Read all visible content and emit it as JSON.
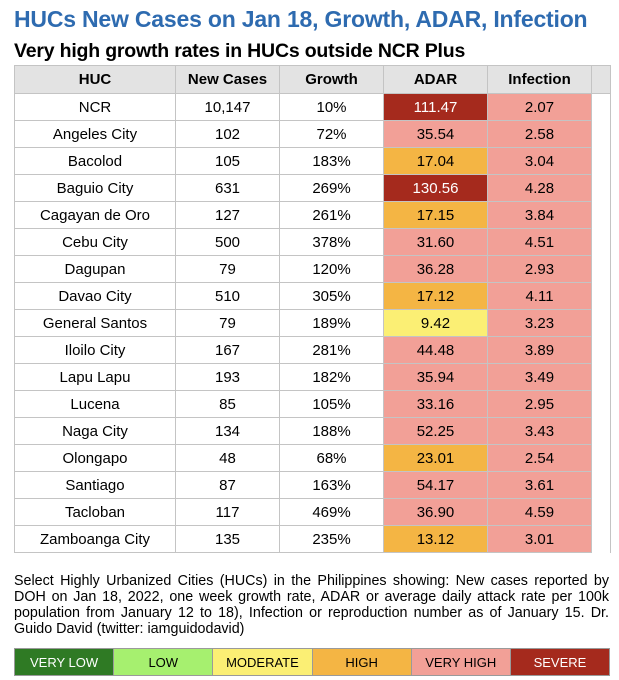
{
  "title": "HUCs New Cases on Jan 18, Growth, ADAR, Infection",
  "subtitle": "Very high growth rates in HUCs outside NCR Plus",
  "headers": {
    "huc": "HUC",
    "new_cases": "New Cases",
    "growth": "Growth",
    "adar": "ADAR",
    "infection": "Infection"
  },
  "rows": [
    {
      "huc": "NCR",
      "new_cases": "10,147",
      "growth": "10%",
      "adar": "111.47",
      "infection": "2.07"
    },
    {
      "huc": "Angeles City",
      "new_cases": "102",
      "growth": "72%",
      "adar": "35.54",
      "infection": "2.58"
    },
    {
      "huc": "Bacolod",
      "new_cases": "105",
      "growth": "183%",
      "adar": "17.04",
      "infection": "3.04"
    },
    {
      "huc": "Baguio City",
      "new_cases": "631",
      "growth": "269%",
      "adar": "130.56",
      "infection": "4.28"
    },
    {
      "huc": "Cagayan de Oro",
      "new_cases": "127",
      "growth": "261%",
      "adar": "17.15",
      "infection": "3.84"
    },
    {
      "huc": "Cebu City",
      "new_cases": "500",
      "growth": "378%",
      "adar": "31.60",
      "infection": "4.51"
    },
    {
      "huc": "Dagupan",
      "new_cases": "79",
      "growth": "120%",
      "adar": "36.28",
      "infection": "2.93"
    },
    {
      "huc": "Davao City",
      "new_cases": "510",
      "growth": "305%",
      "adar": "17.12",
      "infection": "4.11"
    },
    {
      "huc": "General Santos",
      "new_cases": "79",
      "growth": "189%",
      "adar": "9.42",
      "infection": "3.23"
    },
    {
      "huc": "Iloilo City",
      "new_cases": "167",
      "growth": "281%",
      "adar": "44.48",
      "infection": "3.89"
    },
    {
      "huc": "Lapu Lapu",
      "new_cases": "193",
      "growth": "182%",
      "adar": "35.94",
      "infection": "3.49"
    },
    {
      "huc": "Lucena",
      "new_cases": "85",
      "growth": "105%",
      "adar": "33.16",
      "infection": "2.95"
    },
    {
      "huc": "Naga City",
      "new_cases": "134",
      "growth": "188%",
      "adar": "52.25",
      "infection": "3.43"
    },
    {
      "huc": "Olongapo",
      "new_cases": "48",
      "growth": "68%",
      "adar": "23.01",
      "infection": "2.54"
    },
    {
      "huc": "Santiago",
      "new_cases": "87",
      "growth": "163%",
      "adar": "54.17",
      "infection": "3.61"
    },
    {
      "huc": "Tacloban",
      "new_cases": "117",
      "growth": "469%",
      "adar": "36.90",
      "infection": "4.59"
    },
    {
      "huc": "Zamboanga City",
      "new_cases": "135",
      "growth": "235%",
      "adar": "13.12",
      "infection": "3.01"
    }
  ],
  "adar_levels": [
    "severe",
    "veryhigh",
    "high",
    "severe",
    "high",
    "veryhigh",
    "veryhigh",
    "high",
    "moderate",
    "veryhigh",
    "veryhigh",
    "veryhigh",
    "veryhigh",
    "high",
    "veryhigh",
    "veryhigh",
    "high"
  ],
  "note": "Select Highly Urbanized Cities (HUCs) in the Philippines showing: New cases reported by DOH on Jan 18, 2022, one week growth rate, ADAR or average daily attack rate per 100k population from January 12 to 18), Infection or reproduction number as of January 15. Dr. Guido David (twitter: iamguidodavid)",
  "legend": [
    {
      "label": "VERY LOW",
      "color": "#2f7a24",
      "text_color": "#ffffff"
    },
    {
      "label": "LOW",
      "color": "#a6f06f",
      "text_color": "#000000"
    },
    {
      "label": "MODERATE",
      "color": "#fbef74",
      "text_color": "#000000"
    },
    {
      "label": "HIGH",
      "color": "#f4b544",
      "text_color": "#000000"
    },
    {
      "label": "VERY HIGH",
      "color": "#f2a097",
      "text_color": "#000000"
    },
    {
      "label": "SEVERE",
      "color": "#a52a1d",
      "text_color": "#ffffff"
    }
  ]
}
